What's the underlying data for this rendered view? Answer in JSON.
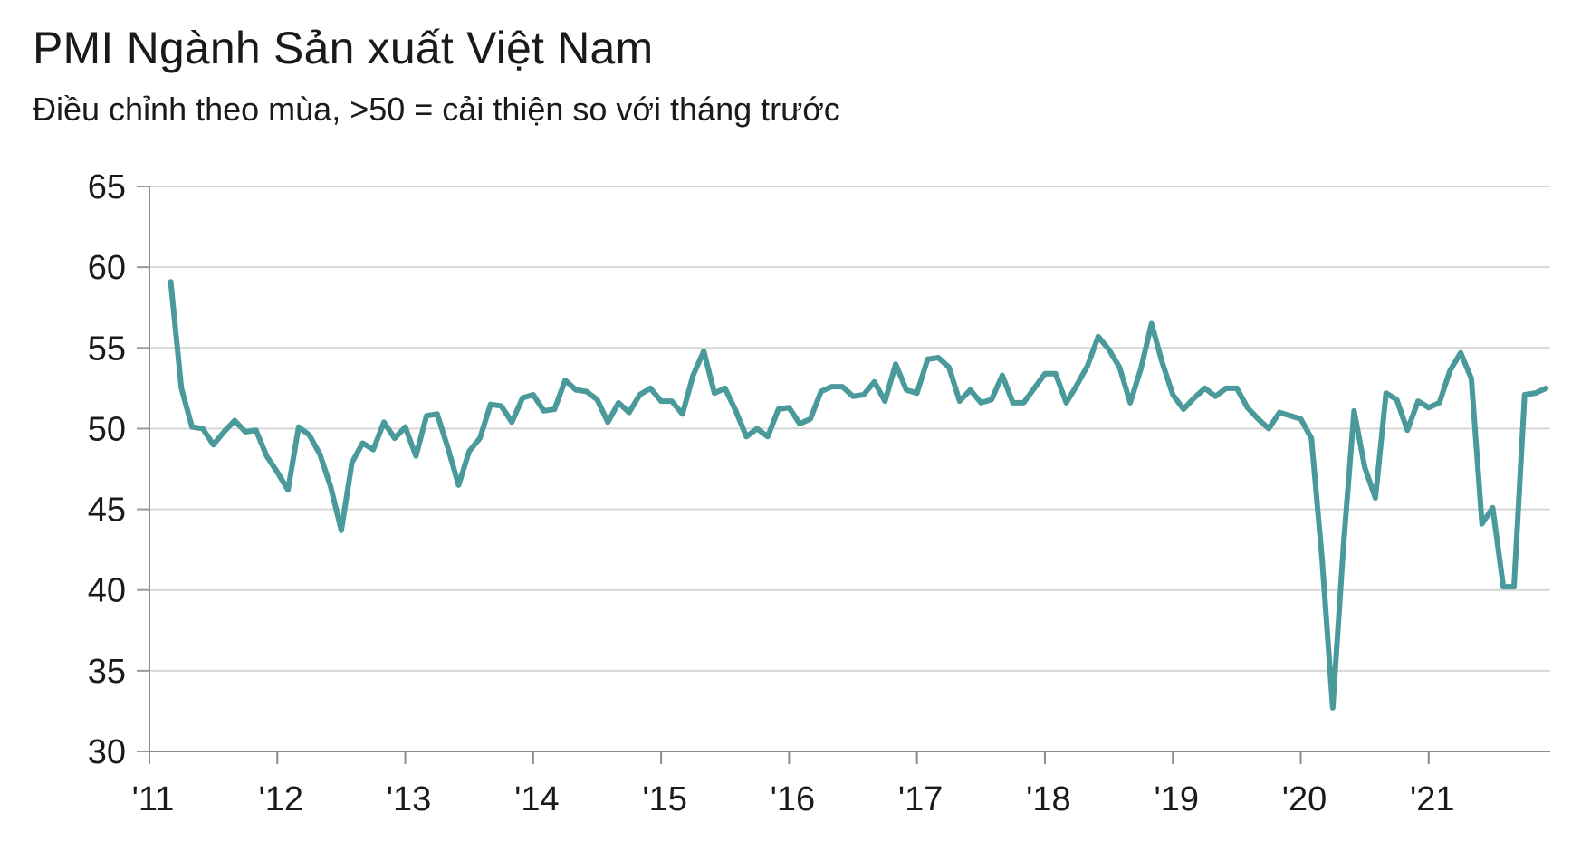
{
  "chart_data": {
    "type": "line",
    "title": "PMI Ngành Sản xuất Việt Nam",
    "subtitle": "Điều chỉnh theo mùa, >50 = cải thiện so với tháng trước",
    "xlabel": "",
    "ylabel": "",
    "ylim": [
      30,
      65
    ],
    "yticks": [
      "65",
      "60",
      "55",
      "50",
      "45",
      "40",
      "35",
      "30"
    ],
    "ytick_values": [
      65,
      60,
      55,
      50,
      45,
      40,
      35,
      30
    ],
    "xticks": [
      "'11",
      "'12",
      "'13",
      "'14",
      "'15",
      "'16",
      "'17",
      "'18",
      "'19",
      "'20",
      "'21"
    ],
    "x_start_year": 2011,
    "x_end_year": 2021.95,
    "grid": true,
    "series": [
      {
        "name": "PMI Ngành Sản xuất Việt Nam",
        "color": "#4a9a9c",
        "start": "2011-03",
        "values": [
          59.1,
          52.5,
          50.1,
          50.0,
          49.0,
          49.8,
          50.5,
          49.8,
          49.9,
          48.3,
          47.3,
          46.2,
          50.1,
          49.6,
          48.4,
          46.4,
          43.7,
          47.9,
          49.1,
          48.7,
          50.4,
          49.4,
          50.1,
          48.3,
          50.8,
          50.9,
          48.8,
          46.5,
          48.6,
          49.4,
          51.5,
          51.4,
          50.4,
          51.9,
          52.1,
          51.1,
          51.2,
          53.0,
          52.4,
          52.3,
          51.8,
          50.4,
          51.6,
          51.0,
          52.1,
          52.5,
          51.7,
          51.7,
          50.9,
          53.3,
          54.8,
          52.2,
          52.5,
          51.1,
          49.5,
          50.0,
          49.5,
          51.2,
          51.3,
          50.3,
          50.6,
          52.3,
          52.6,
          52.6,
          52.0,
          52.1,
          52.9,
          51.7,
          54.0,
          52.4,
          52.2,
          54.3,
          54.4,
          53.8,
          51.7,
          52.4,
          51.6,
          51.8,
          53.3,
          51.6,
          51.6,
          52.5,
          53.4,
          53.4,
          51.6,
          52.7,
          53.9,
          55.7,
          54.9,
          53.8,
          51.6,
          53.7,
          56.5,
          54.1,
          52.1,
          51.2,
          51.9,
          52.5,
          52.0,
          52.5,
          52.5,
          51.3,
          50.6,
          50.0,
          51.0,
          50.8,
          50.6,
          49.4,
          41.9,
          32.7,
          42.7,
          51.1,
          47.6,
          45.7,
          52.2,
          51.8,
          49.9,
          51.7,
          51.3,
          51.6,
          53.6,
          54.7,
          53.1,
          44.1,
          45.1,
          40.2,
          40.2,
          52.1,
          52.2,
          52.5
        ]
      }
    ]
  }
}
